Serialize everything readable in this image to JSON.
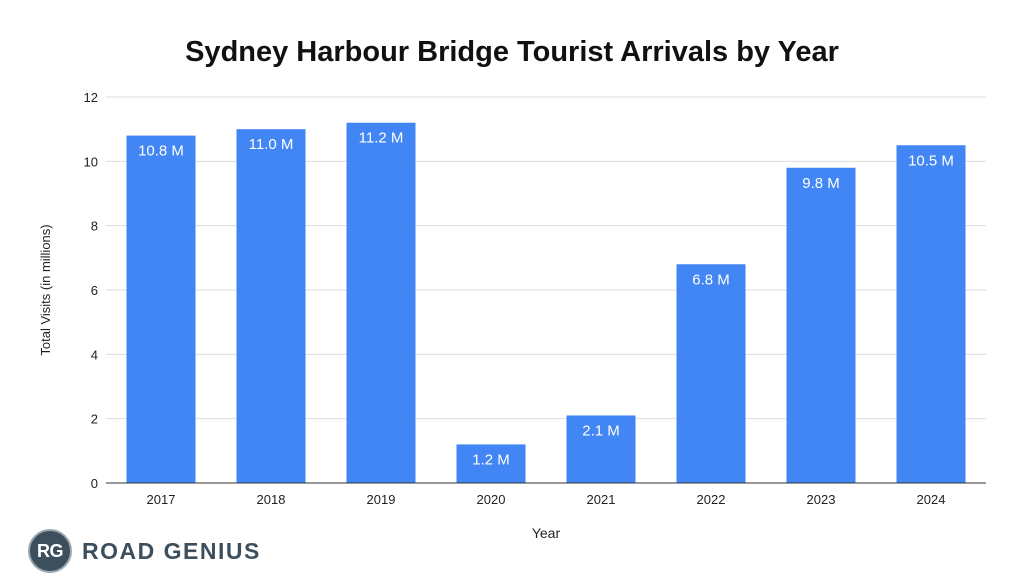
{
  "chart_data": {
    "type": "bar",
    "title": "Sydney Harbour Bridge Tourist Arrivals by Year",
    "xlabel": "Year",
    "ylabel": "Total Visits (in millions)",
    "categories": [
      "2017",
      "2018",
      "2019",
      "2020",
      "2021",
      "2022",
      "2023",
      "2024"
    ],
    "values": [
      10.8,
      11.0,
      11.2,
      1.2,
      2.1,
      6.8,
      9.8,
      10.5
    ],
    "data_labels": [
      "10.8 M",
      "11.0 M",
      "11.2 M",
      "1.2 M",
      "2.1 M",
      "6.8 M",
      "9.8 M",
      "10.5 M"
    ],
    "ylim": [
      0,
      12
    ],
    "yticks": [
      0,
      2,
      4,
      6,
      8,
      10,
      12
    ],
    "grid": true,
    "legend": "none",
    "bar_color": "#4285f4",
    "grid_color": "#dddddd"
  },
  "brand": {
    "initials": "RG",
    "name": "ROAD GENIUS",
    "color": "#3d4f5c"
  }
}
